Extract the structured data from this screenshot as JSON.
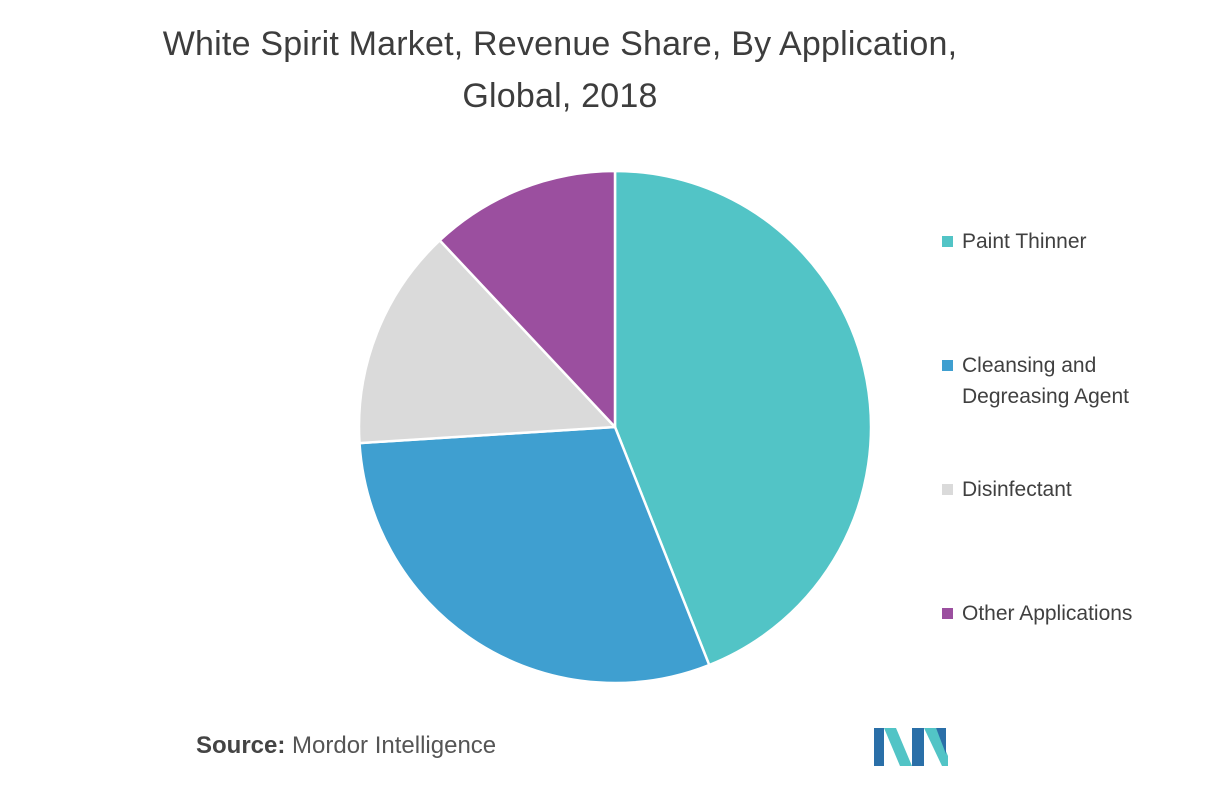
{
  "chart_data": {
    "type": "pie",
    "title_lines": [
      "White Spirit Market, Revenue Share, By Application,",
      "Global, 2018"
    ],
    "slices": [
      {
        "label": "Paint Thinner",
        "value": 44,
        "color": "#52c4c6"
      },
      {
        "label": "Cleansing and\nDegreasing Agent",
        "value": 30,
        "color": "#3f9fd0"
      },
      {
        "label": "Disinfectant",
        "value": 14,
        "color": "#dadada"
      },
      {
        "label": "Other Applications",
        "value": 12,
        "color": "#9b4f9f"
      }
    ],
    "legend_position": "right"
  },
  "source": {
    "label": "Source:",
    "text": "Mordor Intelligence"
  },
  "logo": {
    "icon": "mordor-intelligence-logo",
    "colors": [
      "#2a6fa8",
      "#52c4c6"
    ]
  }
}
